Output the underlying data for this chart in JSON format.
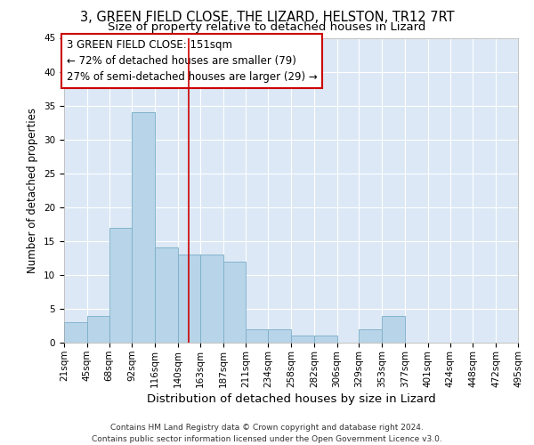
{
  "title": "3, GREEN FIELD CLOSE, THE LIZARD, HELSTON, TR12 7RT",
  "subtitle": "Size of property relative to detached houses in Lizard",
  "xlabel": "Distribution of detached houses by size in Lizard",
  "ylabel": "Number of detached properties",
  "footnote1": "Contains HM Land Registry data © Crown copyright and database right 2024.",
  "footnote2": "Contains public sector information licensed under the Open Government Licence v3.0.",
  "bins": [
    21,
    45,
    68,
    92,
    116,
    140,
    163,
    187,
    211,
    234,
    258,
    282,
    306,
    329,
    353,
    377,
    401,
    424,
    448,
    472,
    495
  ],
  "bin_labels": [
    "21sqm",
    "45sqm",
    "68sqm",
    "92sqm",
    "116sqm",
    "140sqm",
    "163sqm",
    "187sqm",
    "211sqm",
    "234sqm",
    "258sqm",
    "282sqm",
    "306sqm",
    "329sqm",
    "353sqm",
    "377sqm",
    "401sqm",
    "424sqm",
    "448sqm",
    "472sqm",
    "495sqm"
  ],
  "values": [
    3,
    4,
    17,
    34,
    14,
    13,
    13,
    12,
    2,
    2,
    1,
    1,
    0,
    2,
    4,
    0,
    0,
    0,
    0,
    0
  ],
  "bar_color": "#b8d4e8",
  "bar_edge_color": "#7aaec8",
  "background_color": "#dce8f5",
  "grid_color": "#ffffff",
  "vline_x": 151,
  "vline_color": "#cc0000",
  "annotation_line1": "3 GREEN FIELD CLOSE: 151sqm",
  "annotation_line2": "← 72% of detached houses are smaller (79)",
  "annotation_line3": "27% of semi-detached houses are larger (29) →",
  "annotation_box_color": "#cc0000",
  "ylim": [
    0,
    45
  ],
  "yticks": [
    0,
    5,
    10,
    15,
    20,
    25,
    30,
    35,
    40,
    45
  ],
  "title_fontsize": 10.5,
  "subtitle_fontsize": 9.5,
  "tick_fontsize": 7.5,
  "ylabel_fontsize": 8.5,
  "xlabel_fontsize": 9.5,
  "annotation_fontsize": 8.5,
  "footnote_fontsize": 6.5
}
